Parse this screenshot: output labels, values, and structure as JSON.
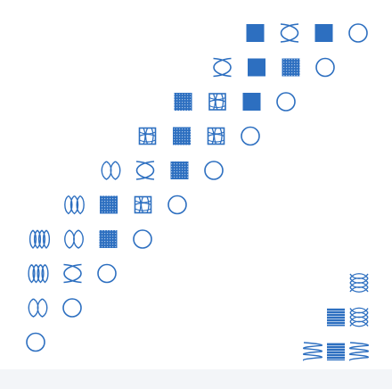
{
  "palette": {
    "accent": "#2d6fc0",
    "background": "#ffffff",
    "bottom_band": "#f3f5f8"
  },
  "glyph_rows": [
    [
      "solid-square-icon",
      "crossed-loop-icon",
      "solid-square-icon",
      "circle-icon"
    ],
    [
      "crossed-loop-icon",
      "solid-square-icon",
      "dotted-square-icon",
      "circle-icon"
    ],
    [
      "dotted-square-icon",
      "meshed-square-icon",
      "solid-square-icon",
      "circle-icon"
    ],
    [
      "meshed-square-icon",
      "dotted-square-icon",
      "meshed-square-icon",
      "circle-icon"
    ],
    [
      "double-loop-icon",
      "crossed-loop-icon",
      "dotted-square-icon",
      "circle-icon"
    ],
    [
      "triple-loop-icon",
      "dotted-square-icon",
      "meshed-square-icon",
      "circle-icon"
    ],
    [
      "quad-loop-icon",
      "double-loop-icon",
      "dotted-square-icon",
      "circle-icon"
    ],
    [
      "quad-loop-icon",
      "crossed-loop-icon",
      "circle-icon"
    ],
    [
      "double-loop-icon",
      "circle-icon"
    ],
    [
      "circle-icon"
    ]
  ],
  "corner_rows": [
    [
      "stacked-loop-icon"
    ],
    [
      "striped-square-icon",
      "stacked-loop-icon"
    ],
    [
      "zigzag-icon",
      "striped-square-icon",
      "zigzag-icon"
    ]
  ]
}
